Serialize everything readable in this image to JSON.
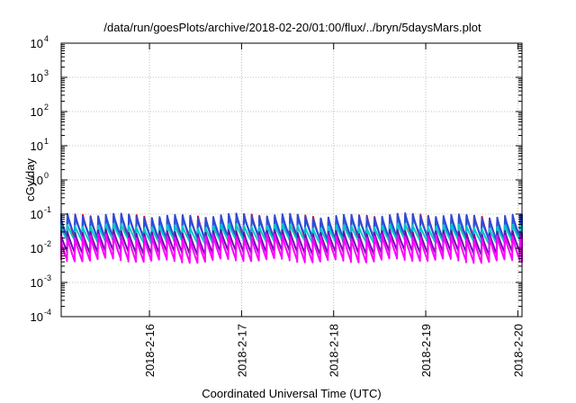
{
  "chart_data": {
    "type": "line",
    "title": "/data/run/goesPlots/archive/2018-02-20/01:00/flux/../bryn/5daysMars.plot",
    "xlabel": "Coordinated Universal Time (UTC)",
    "ylabel": "cGy/day",
    "yscale": "log",
    "ylim": [
      0.0001,
      10000
    ],
    "xlim": [
      "2018-02-15T01:00",
      "2018-02-20T01:05"
    ],
    "grid": true,
    "y_ticks": [
      {
        "base": "10",
        "exp": "-4",
        "value": 0.0001
      },
      {
        "base": "10",
        "exp": "-3",
        "value": 0.001
      },
      {
        "base": "10",
        "exp": "-2",
        "value": 0.01
      },
      {
        "base": "10",
        "exp": "-1",
        "value": 0.1
      },
      {
        "base": "10",
        "exp": "0",
        "value": 1
      },
      {
        "base": "10",
        "exp": "1",
        "value": 10
      },
      {
        "base": "10",
        "exp": "2",
        "value": 100
      },
      {
        "base": "10",
        "exp": "3",
        "value": 1000
      },
      {
        "base": "10",
        "exp": "4",
        "value": 10000
      }
    ],
    "x_ticks": [
      {
        "label": "2018-2-16",
        "value": "2018-02-16T00:00"
      },
      {
        "label": "2018-2-17",
        "value": "2018-02-17T00:00"
      },
      {
        "label": "2018-2-18",
        "value": "2018-02-18T00:00"
      },
      {
        "label": "2018-2-19",
        "value": "2018-02-19T00:00"
      },
      {
        "label": "2018-2-20",
        "value": "2018-02-20T00:00"
      }
    ],
    "series": [
      {
        "color": "#ff0000",
        "peak": 0.085,
        "trough": 0.018
      },
      {
        "color": "#1e90ff",
        "peak": 0.07,
        "trough": 0.022
      },
      {
        "color": "#2e4bd6",
        "peak": 0.09,
        "trough": 0.02
      },
      {
        "color": "#00c8c8",
        "peak": 0.045,
        "trough": 0.016
      },
      {
        "color": "#6a0dad",
        "peak": 0.03,
        "trough": 0.0075
      },
      {
        "color": "#ff00ff",
        "peak": 0.022,
        "trough": 0.0045
      }
    ]
  }
}
